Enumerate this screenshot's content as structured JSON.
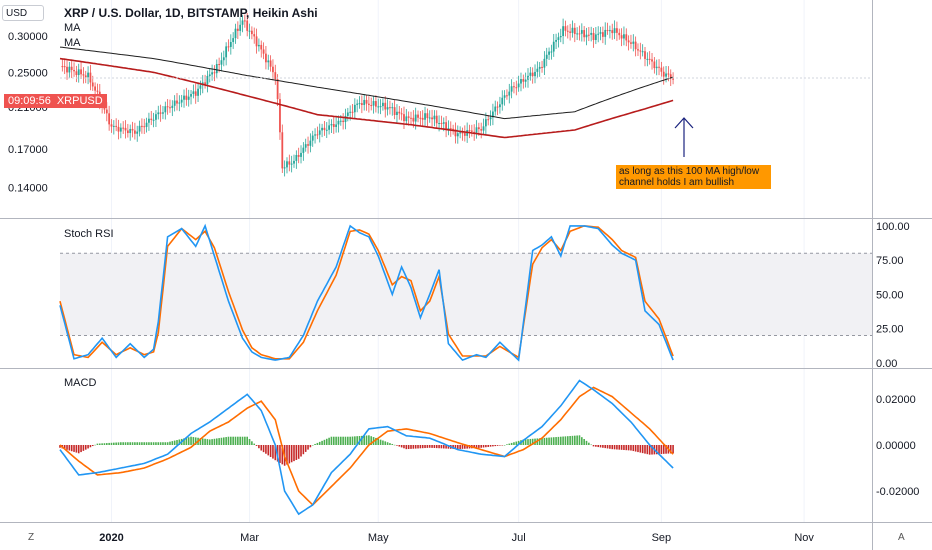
{
  "header": {
    "currency_box": "USD",
    "title": "XRP / U.S. Dollar, 1D, BITSTAMP, Heikin Ashi",
    "indicators": [
      "MA",
      "MA"
    ]
  },
  "price_tag": {
    "countdown": "09:09:56",
    "symbol": "XRPUSD"
  },
  "annotation": {
    "text": "as long as this 100 MA high/low channel holds I am bullish"
  },
  "corners": {
    "left": "Z",
    "right": "A"
  },
  "colors": {
    "up": "#26a69a",
    "down": "#ef5350",
    "ma_long": "#1e1e1e",
    "ma_red": "#b71c1c",
    "stoch_k": "#2196f3",
    "stoch_d": "#ff6d00",
    "macd_line": "#2196f3",
    "signal_line": "#ff6d00",
    "hist_pos": "#4caf50",
    "hist_neg": "#c62828",
    "arrow": "#1a237e",
    "note_bg": "#ff9800"
  },
  "chart_data": [
    {
      "type": "candlestick",
      "title": "XRP / U.S. Dollar, 1D, BITSTAMP, Heikin Ashi",
      "x_ticks": [
        "2020",
        "Mar",
        "May",
        "Jul",
        "Sep",
        "Nov"
      ],
      "y_ticks": [
        "0.30000",
        "0.25000",
        "0.21000",
        "0.17000",
        "0.14000"
      ],
      "ylim": [
        0.12,
        0.36
      ],
      "scale": "log",
      "waypoints_days": [
        0,
        12,
        22,
        32,
        45,
        58,
        68,
        78,
        85,
        92,
        95,
        100,
        110,
        120,
        128,
        140,
        148,
        158,
        170,
        180,
        192,
        205,
        215,
        228,
        236,
        244,
        252,
        258,
        262
      ],
      "waypoints_close": [
        0.258,
        0.245,
        0.19,
        0.185,
        0.208,
        0.226,
        0.26,
        0.325,
        0.285,
        0.245,
        0.155,
        0.16,
        0.185,
        0.195,
        0.215,
        0.21,
        0.198,
        0.2,
        0.183,
        0.188,
        0.228,
        0.255,
        0.31,
        0.3,
        0.31,
        0.29,
        0.265,
        0.248,
        0.243
      ],
      "series": [
        {
          "name": "MA",
          "days": [
            0,
            40,
            80,
            110,
            150,
            190,
            220,
            250,
            262
          ],
          "values": [
            0.284,
            0.268,
            0.246,
            0.232,
            0.215,
            0.198,
            0.205,
            0.233,
            0.244
          ]
        },
        {
          "name": "MA",
          "days": [
            0,
            40,
            80,
            110,
            150,
            190,
            220,
            250,
            262
          ],
          "values": [
            0.268,
            0.25,
            0.222,
            0.202,
            0.192,
            0.18,
            0.187,
            0.208,
            0.217
          ]
        }
      ],
      "last_price": 0.243
    },
    {
      "type": "line",
      "title": "Stoch RSI",
      "y_ticks": [
        "100.00",
        "75.00",
        "50.00",
        "25.00",
        "0.00"
      ],
      "ylim": [
        -3,
        105
      ],
      "band": [
        20,
        80
      ],
      "series": [
        {
          "name": "K",
          "days": [
            0,
            6,
            12,
            18,
            24,
            30,
            36,
            40,
            42,
            46,
            52,
            58,
            62,
            66,
            72,
            78,
            82,
            86,
            92,
            98,
            104,
            110,
            118,
            124,
            128,
            132,
            136,
            142,
            146,
            150,
            154,
            158,
            162,
            166,
            172,
            178,
            182,
            188,
            196,
            202,
            206,
            210,
            214,
            218,
            224,
            230,
            236,
            240,
            246,
            250,
            256,
            262
          ],
          "values": [
            42,
            3,
            6,
            18,
            4,
            14,
            4,
            10,
            30,
            92,
            98,
            85,
            100,
            78,
            45,
            18,
            8,
            4,
            2,
            4,
            20,
            45,
            70,
            100,
            95,
            92,
            78,
            50,
            70,
            55,
            33,
            50,
            68,
            14,
            2,
            6,
            4,
            15,
            2,
            82,
            86,
            92,
            78,
            100,
            100,
            98,
            86,
            80,
            75,
            38,
            28,
            2
          ]
        },
        {
          "name": "D",
          "days": [
            0,
            6,
            12,
            18,
            24,
            30,
            36,
            40,
            42,
            46,
            52,
            58,
            62,
            66,
            72,
            78,
            82,
            86,
            92,
            98,
            104,
            110,
            118,
            124,
            128,
            132,
            136,
            142,
            146,
            150,
            154,
            158,
            162,
            166,
            172,
            178,
            182,
            188,
            196,
            202,
            206,
            210,
            214,
            218,
            224,
            230,
            236,
            240,
            246,
            250,
            256,
            262
          ],
          "values": [
            45,
            6,
            4,
            15,
            6,
            11,
            6,
            8,
            22,
            85,
            98,
            90,
            96,
            84,
            52,
            24,
            11,
            6,
            3,
            3,
            15,
            38,
            64,
            96,
            97,
            94,
            82,
            57,
            63,
            60,
            38,
            45,
            63,
            21,
            5,
            5,
            5,
            12,
            4,
            72,
            84,
            90,
            82,
            96,
            100,
            99,
            90,
            82,
            77,
            45,
            32,
            5
          ]
        }
      ]
    },
    {
      "type": "line",
      "title": "MACD",
      "y_ticks": [
        "0.02000",
        "0.00000",
        "-0.02000"
      ],
      "ylim": [
        -0.033,
        0.033
      ],
      "series": [
        {
          "name": "MACD",
          "days": [
            0,
            8,
            16,
            26,
            36,
            46,
            56,
            64,
            72,
            80,
            86,
            92,
            96,
            102,
            108,
            116,
            124,
            132,
            140,
            148,
            158,
            170,
            180,
            190,
            198,
            206,
            214,
            222,
            228,
            236,
            244,
            252,
            262
          ],
          "values": [
            -0.002,
            -0.013,
            -0.012,
            -0.01,
            -0.008,
            -0.004,
            0.005,
            0.01,
            0.016,
            0.022,
            0.015,
            0.0,
            -0.02,
            -0.03,
            -0.026,
            -0.012,
            -0.004,
            0.007,
            0.008,
            0.004,
            0.003,
            -0.002,
            -0.004,
            -0.005,
            0.002,
            0.008,
            0.017,
            0.028,
            0.024,
            0.018,
            0.01,
            0.0,
            -0.01
          ]
        },
        {
          "name": "Signal",
          "days": [
            0,
            8,
            16,
            26,
            36,
            46,
            56,
            64,
            72,
            80,
            86,
            92,
            96,
            102,
            108,
            116,
            124,
            132,
            140,
            148,
            158,
            170,
            180,
            190,
            198,
            206,
            214,
            222,
            228,
            236,
            244,
            252,
            262
          ],
          "values": [
            0.0,
            -0.007,
            -0.013,
            -0.012,
            -0.01,
            -0.006,
            -0.001,
            0.006,
            0.01,
            0.016,
            0.019,
            0.011,
            -0.005,
            -0.02,
            -0.026,
            -0.018,
            -0.01,
            0.0,
            0.006,
            0.007,
            0.005,
            0.001,
            -0.002,
            -0.005,
            -0.002,
            0.003,
            0.011,
            0.021,
            0.025,
            0.021,
            0.014,
            0.007,
            -0.004
          ]
        }
      ]
    }
  ]
}
